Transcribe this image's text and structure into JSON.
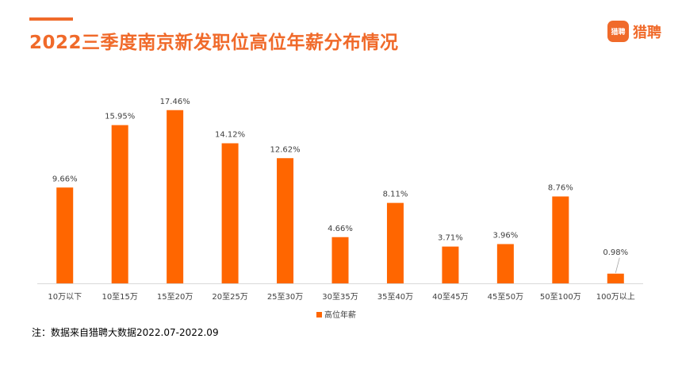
{
  "header": {
    "title": "2022三季度南京新发职位高位年薪分布情况",
    "logo_mark": "猎聘",
    "logo_text": "猎聘"
  },
  "colors": {
    "accent": "#F06A2A",
    "bar": "#FF6600",
    "axis": "#D9D9D9",
    "label": "#404040"
  },
  "chart_data": {
    "type": "bar",
    "title": "2022三季度南京新发职位高位年薪分布情况",
    "categories": [
      "10万以下",
      "10至15万",
      "15至20万",
      "20至25万",
      "25至30万",
      "30至35万",
      "35至40万",
      "40至45万",
      "45至50万",
      "50至100万",
      "100万以上"
    ],
    "series": [
      {
        "name": "高位年薪",
        "values": [
          9.66,
          15.95,
          17.46,
          14.12,
          12.62,
          4.66,
          8.11,
          3.71,
          3.96,
          8.76,
          0.98
        ]
      }
    ],
    "data_labels": [
      "9.66%",
      "15.95%",
      "17.46%",
      "14.12%",
      "12.62%",
      "4.66%",
      "8.11%",
      "3.71%",
      "3.96%",
      "8.76%",
      "0.98%"
    ],
    "ylim": [
      0,
      18
    ],
    "grid": false,
    "legend_position": "bottom"
  },
  "footnote": "注：数据来自猎聘大数据2022.07-2022.09"
}
